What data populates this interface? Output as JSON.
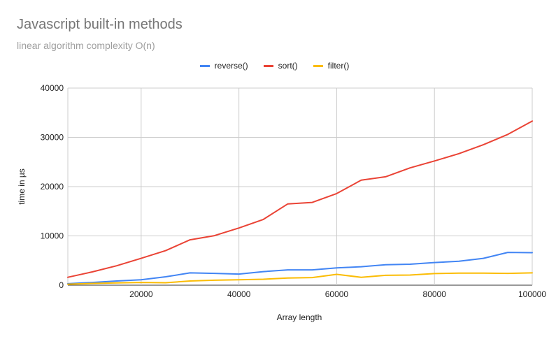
{
  "chart_data": {
    "type": "line",
    "title": "Javascript built-in methods",
    "subtitle": "linear algorithm complexity O(n)",
    "xlabel": "Array length",
    "ylabel": "time in µs",
    "xlim": [
      5000,
      100000
    ],
    "ylim": [
      0,
      40000
    ],
    "xticks": [
      20000,
      40000,
      60000,
      80000,
      100000
    ],
    "yticks": [
      0,
      10000,
      20000,
      30000,
      40000
    ],
    "legend_position": "top",
    "grid": true,
    "x": [
      5000,
      10000,
      15000,
      20000,
      25000,
      30000,
      35000,
      40000,
      45000,
      50000,
      55000,
      60000,
      65000,
      70000,
      75000,
      80000,
      85000,
      90000,
      95000,
      100000
    ],
    "series": [
      {
        "name": "reverse()",
        "color": "#4285f4",
        "values": [
          300,
          550,
          850,
          1100,
          1700,
          2500,
          2400,
          2250,
          2750,
          3100,
          3100,
          3500,
          3750,
          4150,
          4250,
          4600,
          4850,
          5450,
          6650,
          6600
        ]
      },
      {
        "name": "sort()",
        "color": "#ea4335",
        "values": [
          1600,
          2700,
          3950,
          5450,
          7000,
          9200,
          10050,
          11600,
          13350,
          16500,
          16800,
          18600,
          21300,
          22000,
          23800,
          25200,
          26700,
          28500,
          30600,
          33300
        ]
      },
      {
        "name": "filter()",
        "color": "#fbbc04",
        "values": [
          200,
          350,
          450,
          550,
          500,
          850,
          1000,
          1100,
          1200,
          1450,
          1550,
          2200,
          1600,
          2000,
          2050,
          2350,
          2450,
          2450,
          2400,
          2500
        ]
      }
    ]
  }
}
